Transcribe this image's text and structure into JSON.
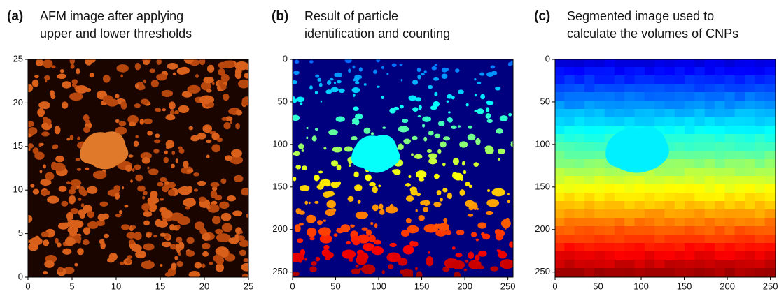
{
  "chart_data": [
    {
      "type": "image",
      "label": "(a)",
      "title": [
        "AFM image after applying",
        "upper and lower thresholds"
      ],
      "colormap": "afmhot",
      "xlim": [
        0,
        25
      ],
      "ylim": [
        0,
        25
      ],
      "xticks": [
        0,
        5,
        10,
        15,
        20,
        25
      ],
      "yticks": [
        0,
        5,
        10,
        15,
        20,
        25
      ]
    },
    {
      "type": "image",
      "label": "(b)",
      "title": [
        "Result of particle",
        "identification and counting"
      ],
      "colormap": "jet-particles",
      "xlim": [
        0,
        256
      ],
      "ylim": [
        256,
        0
      ],
      "xticks": [
        0,
        50,
        100,
        150,
        200,
        250
      ],
      "yticks": [
        0,
        50,
        100,
        150,
        200,
        250
      ]
    },
    {
      "type": "image",
      "label": "(c)",
      "title": [
        "Segmented image used to",
        "calculate the volumes of CNPs"
      ],
      "colormap": "jet-segments",
      "xlim": [
        0,
        256
      ],
      "ylim": [
        256,
        0
      ],
      "xticks": [
        0,
        50,
        100,
        150,
        200,
        250
      ],
      "yticks": [
        0,
        50,
        100,
        150,
        200,
        250
      ]
    }
  ]
}
